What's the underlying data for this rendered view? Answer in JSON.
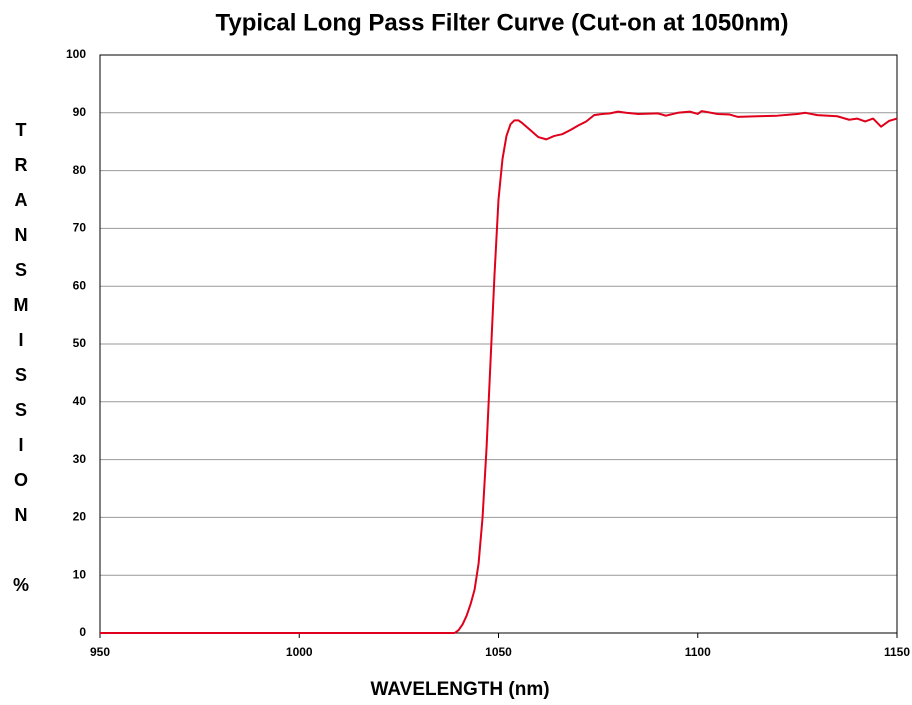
{
  "chart_data": {
    "type": "line",
    "title": "Typical Long Pass Filter Curve (Cut-on at 1050nm)",
    "xlabel": "WAVELENGTH (nm)",
    "ylabel": "TRANSMISSION %",
    "x": [
      950,
      1000,
      1039,
      1040,
      1041,
      1042,
      1043,
      1044,
      1045,
      1046,
      1047,
      1048,
      1049,
      1050,
      1051,
      1052,
      1053,
      1054,
      1055,
      1056,
      1058,
      1060,
      1062,
      1064,
      1066,
      1068,
      1070,
      1072,
      1074,
      1076,
      1078,
      1080,
      1082,
      1085,
      1090,
      1092,
      1095,
      1098,
      1100,
      1101,
      1105,
      1108,
      1110,
      1115,
      1120,
      1125,
      1127,
      1130,
      1135,
      1138,
      1140,
      1142,
      1144,
      1146,
      1148,
      1150
    ],
    "series": [
      {
        "name": "Transmission",
        "color": "#e0001b",
        "values": [
          0,
          0,
          0,
          0.5,
          1.5,
          3,
          5,
          7.5,
          12,
          20,
          32,
          47,
          62,
          75,
          82,
          86,
          88,
          88.7,
          88.7,
          88.2,
          87,
          85.8,
          85.4,
          86,
          86.3,
          87,
          87.8,
          88.5,
          89.6,
          89.8,
          89.9,
          90.2,
          90,
          89.8,
          89.9,
          89.5,
          90,
          90.2,
          89.8,
          90.3,
          89.8,
          89.7,
          89.3,
          89.4,
          89.5,
          89.8,
          90,
          89.6,
          89.4,
          88.8,
          89,
          88.5,
          89,
          87.6,
          88.6,
          89
        ]
      }
    ],
    "xlim": [
      950,
      1150
    ],
    "xticks": [
      950,
      1000,
      1050,
      1100,
      1150
    ],
    "ylim": [
      0,
      100
    ],
    "yticks": [
      0,
      10,
      20,
      30,
      40,
      50,
      60,
      70,
      80,
      90,
      100
    ],
    "grid": true
  }
}
